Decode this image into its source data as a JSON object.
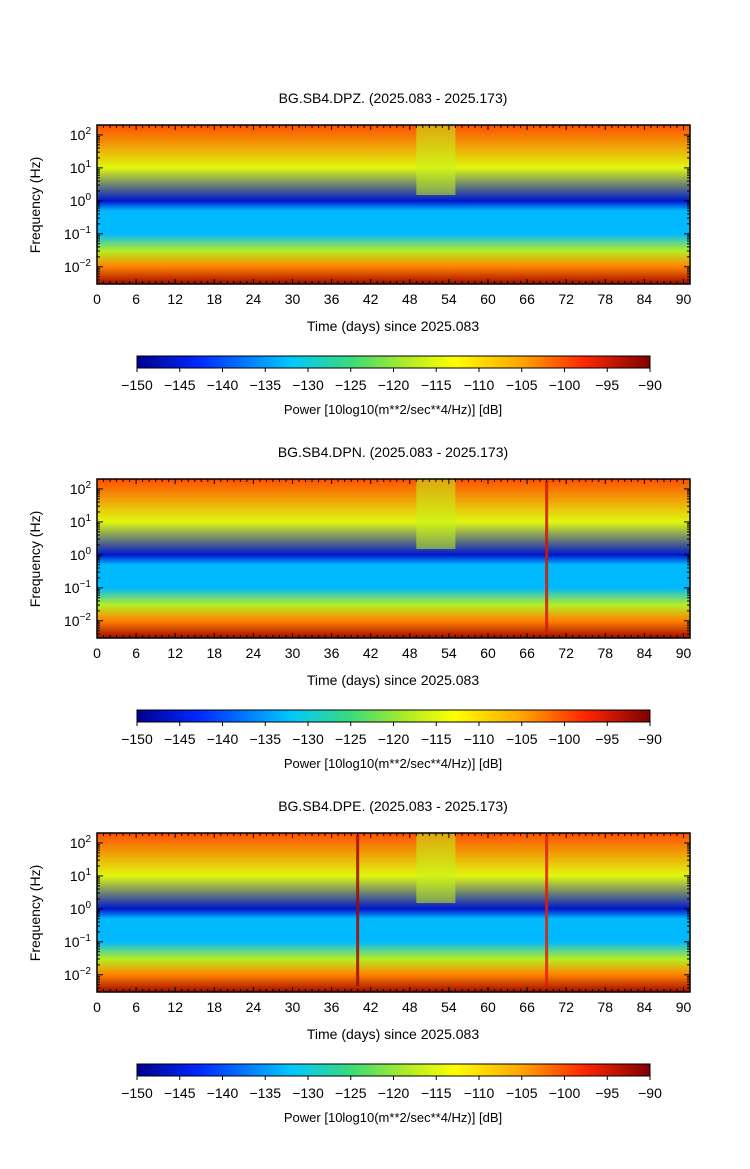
{
  "chart_data": [
    {
      "type": "heatmap",
      "title": "BG.SB4.DPZ. (2025.083 - 2025.173)",
      "xlabel": "Time (days) since 2025.083",
      "ylabel": "Frequency (Hz)",
      "xlim": [
        0,
        91
      ],
      "ylim": [
        0.003,
        200
      ],
      "yscale": "log",
      "x_ticks": [
        0,
        6,
        12,
        18,
        24,
        30,
        36,
        42,
        48,
        54,
        60,
        66,
        72,
        78,
        84,
        90
      ],
      "y_ticks": [
        {
          "value": 100,
          "base": "10",
          "exp": "2"
        },
        {
          "value": 10,
          "base": "10",
          "exp": "1"
        },
        {
          "value": 1,
          "base": "10",
          "exp": "0"
        },
        {
          "value": 0.1,
          "base": "10",
          "exp": "−1"
        },
        {
          "value": 0.01,
          "base": "10",
          "exp": "−2"
        }
      ],
      "colorbar": {
        "label": "Power [10log10(m**2/sec**4/Hz)] [dB]",
        "range": [
          -150,
          -90
        ],
        "ticks": [
          "−150",
          "−145",
          "−140",
          "−135",
          "−130",
          "−125",
          "−120",
          "−115",
          "−110",
          "−105",
          "−100",
          "−95",
          "−90"
        ]
      },
      "data_gap_days": [
        49,
        55
      ],
      "power_profile_db": [
        {
          "freq_hz": 0.003,
          "power_db": -92
        },
        {
          "freq_hz": 0.01,
          "power_db": -103
        },
        {
          "freq_hz": 0.03,
          "power_db": -118
        },
        {
          "freq_hz": 0.1,
          "power_db": -133
        },
        {
          "freq_hz": 0.5,
          "power_db": -133
        },
        {
          "freq_hz": 1,
          "power_db": -146
        },
        {
          "freq_hz": 10,
          "power_db": -115
        },
        {
          "freq_hz": 200,
          "power_db": -100
        }
      ],
      "transients": []
    },
    {
      "type": "heatmap",
      "title": "BG.SB4.DPN. (2025.083 - 2025.173)",
      "xlabel": "Time (days) since 2025.083",
      "ylabel": "Frequency (Hz)",
      "xlim": [
        0,
        91
      ],
      "ylim": [
        0.003,
        200
      ],
      "yscale": "log",
      "x_ticks": [
        0,
        6,
        12,
        18,
        24,
        30,
        36,
        42,
        48,
        54,
        60,
        66,
        72,
        78,
        84,
        90
      ],
      "y_ticks": [
        {
          "value": 100,
          "base": "10",
          "exp": "2"
        },
        {
          "value": 10,
          "base": "10",
          "exp": "1"
        },
        {
          "value": 1,
          "base": "10",
          "exp": "0"
        },
        {
          "value": 0.1,
          "base": "10",
          "exp": "−1"
        },
        {
          "value": 0.01,
          "base": "10",
          "exp": "−2"
        }
      ],
      "colorbar": {
        "label": "Power [10log10(m**2/sec**4/Hz)] [dB]",
        "range": [
          -150,
          -90
        ],
        "ticks": [
          "−150",
          "−145",
          "−140",
          "−135",
          "−130",
          "−125",
          "−120",
          "−115",
          "−110",
          "−105",
          "−100",
          "−95",
          "−90"
        ]
      },
      "data_gap_days": [
        49,
        55
      ],
      "power_profile_db": [
        {
          "freq_hz": 0.003,
          "power_db": -92
        },
        {
          "freq_hz": 0.01,
          "power_db": -103
        },
        {
          "freq_hz": 0.03,
          "power_db": -118
        },
        {
          "freq_hz": 0.1,
          "power_db": -133
        },
        {
          "freq_hz": 0.5,
          "power_db": -133
        },
        {
          "freq_hz": 1,
          "power_db": -146
        },
        {
          "freq_hz": 10,
          "power_db": -115
        },
        {
          "freq_hz": 200,
          "power_db": -100
        }
      ],
      "transients": [
        {
          "day": 69,
          "power_db": -95
        }
      ]
    },
    {
      "type": "heatmap",
      "title": "BG.SB4.DPE. (2025.083 - 2025.173)",
      "xlabel": "Time (days) since 2025.083",
      "ylabel": "Frequency (Hz)",
      "xlim": [
        0,
        91
      ],
      "ylim": [
        0.003,
        200
      ],
      "yscale": "log",
      "x_ticks": [
        0,
        6,
        12,
        18,
        24,
        30,
        36,
        42,
        48,
        54,
        60,
        66,
        72,
        78,
        84,
        90
      ],
      "y_ticks": [
        {
          "value": 100,
          "base": "10",
          "exp": "2"
        },
        {
          "value": 10,
          "base": "10",
          "exp": "1"
        },
        {
          "value": 1,
          "base": "10",
          "exp": "0"
        },
        {
          "value": 0.1,
          "base": "10",
          "exp": "−1"
        },
        {
          "value": 0.01,
          "base": "10",
          "exp": "−2"
        }
      ],
      "colorbar": {
        "label": "Power [10log10(m**2/sec**4/Hz)] [dB]",
        "range": [
          -150,
          -90
        ],
        "ticks": [
          "−150",
          "−145",
          "−140",
          "−135",
          "−130",
          "−125",
          "−120",
          "−115",
          "−110",
          "−105",
          "−100",
          "−95",
          "−90"
        ]
      },
      "data_gap_days": [
        49,
        55
      ],
      "power_profile_db": [
        {
          "freq_hz": 0.003,
          "power_db": -92
        },
        {
          "freq_hz": 0.01,
          "power_db": -103
        },
        {
          "freq_hz": 0.03,
          "power_db": -118
        },
        {
          "freq_hz": 0.1,
          "power_db": -133
        },
        {
          "freq_hz": 0.5,
          "power_db": -133
        },
        {
          "freq_hz": 1,
          "power_db": -146
        },
        {
          "freq_hz": 10,
          "power_db": -115
        },
        {
          "freq_hz": 200,
          "power_db": -100
        }
      ],
      "transients": [
        {
          "day": 40,
          "power_db": -92
        },
        {
          "day": 69,
          "power_db": -96
        }
      ]
    }
  ]
}
